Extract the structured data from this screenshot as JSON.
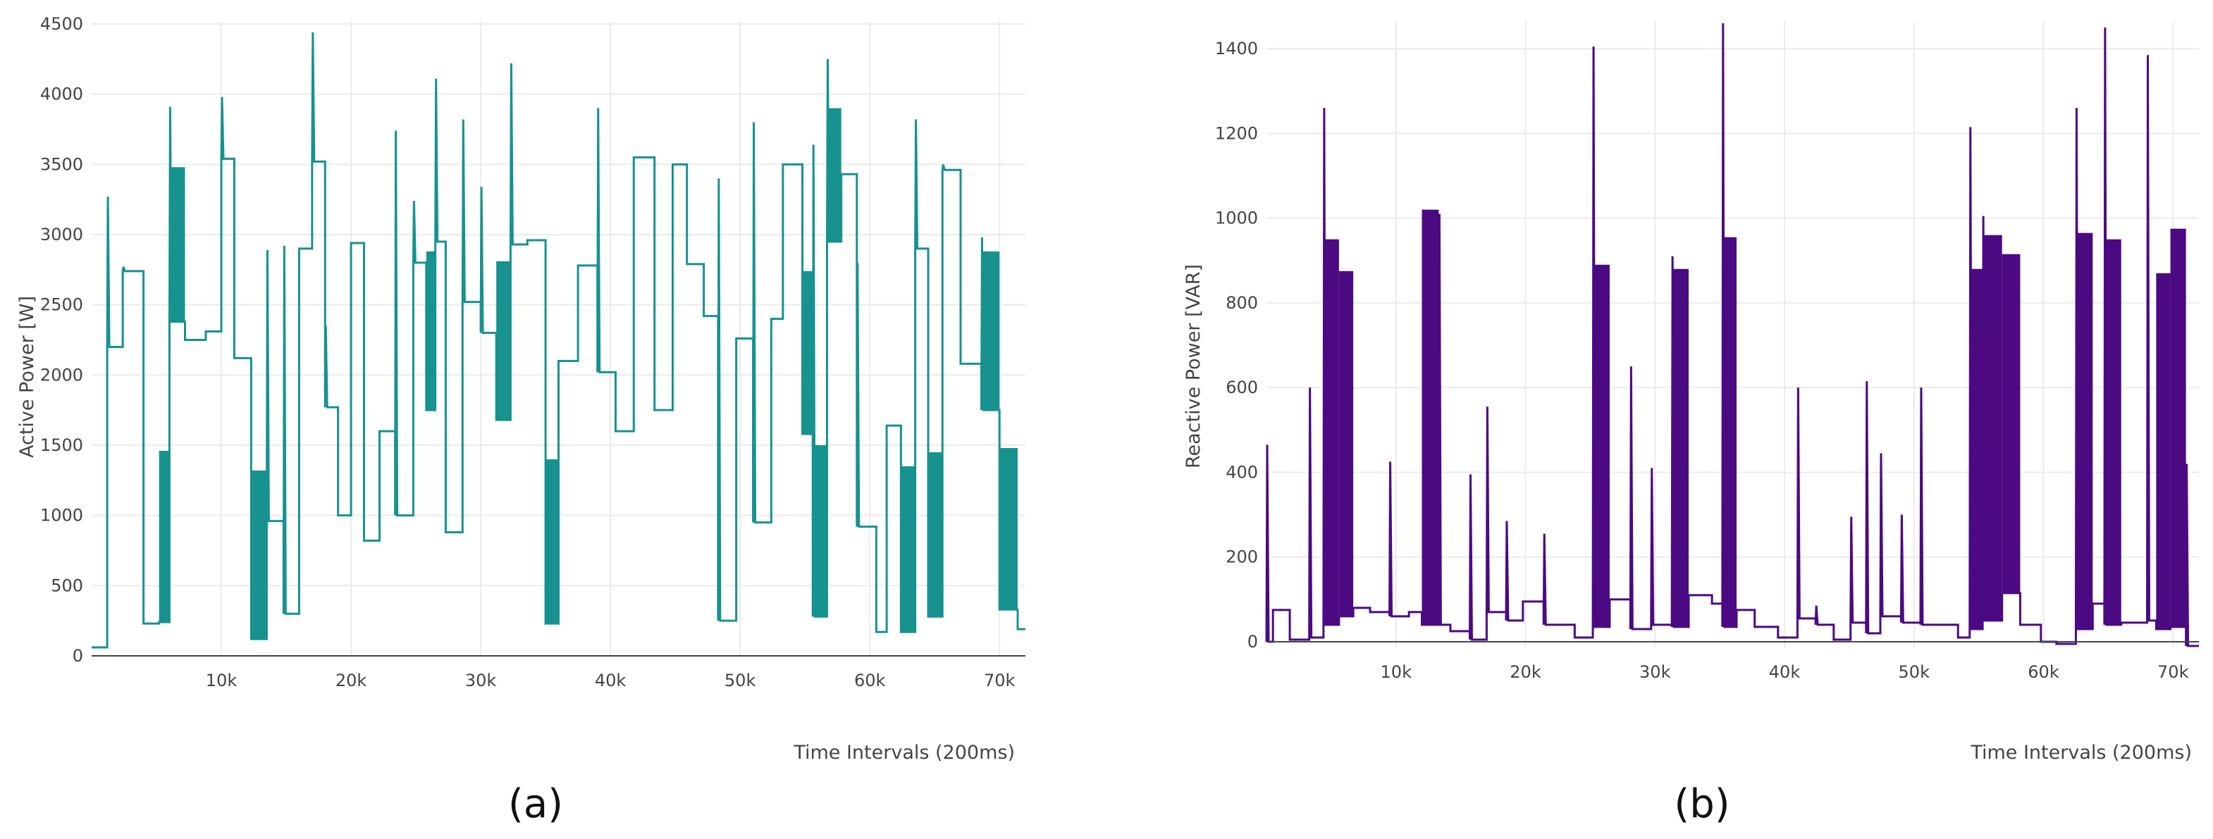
{
  "chart_data": [
    {
      "type": "line",
      "caption": "(a)",
      "ylabel": "Active Power [W]",
      "xlabel": "Time Intervals (200ms)",
      "color": "#17928f",
      "xlim": [
        0,
        72000
      ],
      "ylim": [
        -5,
        4520
      ],
      "grid": true,
      "x_ticks": [
        10000,
        20000,
        30000,
        40000,
        50000,
        60000,
        70000
      ],
      "x_tick_labels": [
        "10k",
        "20k",
        "30k",
        "40k",
        "50k",
        "60k",
        "70k"
      ],
      "y_ticks": [
        0,
        500,
        1000,
        1500,
        2000,
        2500,
        3000,
        3500,
        4000,
        4500
      ],
      "y_tick_labels": [
        "0",
        "500",
        "1000",
        "1500",
        "2000",
        "2500",
        "3000",
        "3500",
        "4000",
        "4500"
      ],
      "series": [
        {
          "name": "Active Power",
          "segments": [
            {
              "x0": 0,
              "x1": 1200,
              "y": 60
            },
            {
              "x0": 1200,
              "x1": 2400,
              "y": 2200,
              "spike": 3270
            },
            {
              "x0": 2400,
              "x1": 4000,
              "y": 2740,
              "spike": 2770
            },
            {
              "x0": 4000,
              "x1": 5200,
              "y": 230
            },
            {
              "x0": 5200,
              "x1": 6000,
              "y": 240,
              "band_low": 240,
              "band_high": 1460
            },
            {
              "x0": 6000,
              "x1": 7200,
              "y": 2380,
              "band_low": 2380,
              "band_high": 3480,
              "spike": 3910
            },
            {
              "x0": 7200,
              "x1": 8800,
              "y": 2250
            },
            {
              "x0": 8800,
              "x1": 10000,
              "y": 2310
            },
            {
              "x0": 10000,
              "x1": 11000,
              "y": 3540,
              "spike": 3980
            },
            {
              "x0": 11000,
              "x1": 12300,
              "y": 2120
            },
            {
              "x0": 12300,
              "x1": 13500,
              "y": 120,
              "band_low": 120,
              "band_high": 1320
            },
            {
              "x0": 13500,
              "x1": 14800,
              "y": 960,
              "spike": 2890
            },
            {
              "x0": 14800,
              "x1": 16000,
              "y": 300,
              "spike": 2920
            },
            {
              "x0": 16000,
              "x1": 17000,
              "y": 2900
            },
            {
              "x0": 17000,
              "x1": 18000,
              "y": 3520,
              "spike": 4440
            },
            {
              "x0": 18000,
              "x1": 19000,
              "y": 1770,
              "spike": 2350
            },
            {
              "x0": 19000,
              "x1": 20000,
              "y": 1000
            },
            {
              "x0": 20000,
              "x1": 21000,
              "y": 2940
            },
            {
              "x0": 21000,
              "x1": 22200,
              "y": 820
            },
            {
              "x0": 22200,
              "x1": 23400,
              "y": 1600
            },
            {
              "x0": 23400,
              "x1": 24800,
              "y": 1000,
              "spike": 3740
            },
            {
              "x0": 24800,
              "x1": 25800,
              "y": 2800,
              "spike": 3240
            },
            {
              "x0": 25800,
              "x1": 26500,
              "y": 1750,
              "band_low": 1750,
              "band_high": 2880
            },
            {
              "x0": 26500,
              "x1": 27300,
              "y": 2950,
              "spike": 4110
            },
            {
              "x0": 27300,
              "x1": 28600,
              "y": 880
            },
            {
              "x0": 28600,
              "x1": 30000,
              "y": 2520,
              "spike": 3820
            },
            {
              "x0": 30000,
              "x1": 31200,
              "y": 2300,
              "spike": 3340
            },
            {
              "x0": 31200,
              "x1": 32300,
              "y": 1680,
              "band_low": 1680,
              "band_high": 2810
            },
            {
              "x0": 32300,
              "x1": 33600,
              "y": 2930,
              "spike": 4220
            },
            {
              "x0": 33600,
              "x1": 35000,
              "y": 2960
            },
            {
              "x0": 35000,
              "x1": 36000,
              "y": 230,
              "band_low": 230,
              "band_high": 1400
            },
            {
              "x0": 36000,
              "x1": 37500,
              "y": 2100
            },
            {
              "x0": 37500,
              "x1": 39000,
              "y": 2780
            },
            {
              "x0": 39000,
              "x1": 40400,
              "y": 2020,
              "spike": 3900
            },
            {
              "x0": 40400,
              "x1": 41800,
              "y": 1600
            },
            {
              "x0": 41800,
              "x1": 43400,
              "y": 3550
            },
            {
              "x0": 43400,
              "x1": 44800,
              "y": 1750
            },
            {
              "x0": 44800,
              "x1": 45900,
              "y": 3500
            },
            {
              "x0": 45900,
              "x1": 47200,
              "y": 2790
            },
            {
              "x0": 47200,
              "x1": 48300,
              "y": 2420
            },
            {
              "x0": 48300,
              "x1": 49700,
              "y": 250,
              "spike": 3400
            },
            {
              "x0": 49700,
              "x1": 51000,
              "y": 2260
            },
            {
              "x0": 51000,
              "x1": 52400,
              "y": 950,
              "spike": 3800
            },
            {
              "x0": 52400,
              "x1": 53300,
              "y": 2400
            },
            {
              "x0": 53300,
              "x1": 54800,
              "y": 3500
            },
            {
              "x0": 54800,
              "x1": 55600,
              "y": 1580,
              "band_low": 1580,
              "band_high": 2740
            },
            {
              "x0": 55600,
              "x1": 56700,
              "y": 280,
              "band_low": 280,
              "band_high": 1500,
              "spike": 3640
            },
            {
              "x0": 56700,
              "x1": 57800,
              "y": 2950,
              "band_low": 2950,
              "band_high": 3900,
              "spike": 4250
            },
            {
              "x0": 57800,
              "x1": 59000,
              "y": 3430
            },
            {
              "x0": 59000,
              "x1": 60500,
              "y": 920,
              "spike": 2800
            },
            {
              "x0": 60500,
              "x1": 61300,
              "y": 170
            },
            {
              "x0": 61300,
              "x1": 62400,
              "y": 1640
            },
            {
              "x0": 62400,
              "x1": 63500,
              "y": 170,
              "band_low": 170,
              "band_high": 1350
            },
            {
              "x0": 63500,
              "x1": 64500,
              "y": 2900,
              "spike": 3820
            },
            {
              "x0": 64500,
              "x1": 65600,
              "y": 280,
              "band_low": 280,
              "band_high": 1450
            },
            {
              "x0": 65600,
              "x1": 67000,
              "y": 3460,
              "spike": 3500
            },
            {
              "x0": 67000,
              "x1": 68600,
              "y": 2080
            },
            {
              "x0": 68600,
              "x1": 70000,
              "y": 1750,
              "band_low": 1750,
              "band_high": 2880,
              "spike": 2980
            },
            {
              "x0": 70000,
              "x1": 71400,
              "y": 330,
              "band_low": 330,
              "band_high": 1480
            },
            {
              "x0": 71400,
              "x1": 72000,
              "y": 190
            }
          ]
        }
      ]
    },
    {
      "type": "line",
      "caption": "(b)",
      "ylabel": "Reactive Power [VAR]",
      "xlabel": "Time Intervals (200ms)",
      "color": "#4b0a82",
      "xlim": [
        0,
        72000
      ],
      "ylim": [
        -15,
        1465
      ],
      "grid": true,
      "x_ticks": [
        10000,
        20000,
        30000,
        40000,
        50000,
        60000,
        70000
      ],
      "x_tick_labels": [
        "10k",
        "20k",
        "30k",
        "40k",
        "50k",
        "60k",
        "70k"
      ],
      "y_ticks": [
        0,
        200,
        400,
        600,
        800,
        1000,
        1200,
        1400
      ],
      "y_tick_labels": [
        "0",
        "200",
        "400",
        "600",
        "800",
        "1000",
        "1200",
        "1400"
      ],
      "series": [
        {
          "name": "Reactive Power",
          "segments": [
            {
              "x0": 0,
              "x1": 500,
              "y": 0,
              "spike": 465
            },
            {
              "x0": 500,
              "x1": 1800,
              "y": 75
            },
            {
              "x0": 1800,
              "x1": 3300,
              "y": 5
            },
            {
              "x0": 3300,
              "x1": 4400,
              "y": 10,
              "spike": 600
            },
            {
              "x0": 4400,
              "x1": 5600,
              "y": 40,
              "band_low": 40,
              "band_high": 950,
              "spike": 1260
            },
            {
              "x0": 5600,
              "x1": 6700,
              "y": 60,
              "band_low": 60,
              "band_high": 875
            },
            {
              "x0": 6700,
              "x1": 8000,
              "y": 80
            },
            {
              "x0": 8000,
              "x1": 9500,
              "y": 70
            },
            {
              "x0": 9500,
              "x1": 11000,
              "y": 60,
              "spike": 425
            },
            {
              "x0": 11000,
              "x1": 12000,
              "y": 70
            },
            {
              "x0": 12000,
              "x1": 13300,
              "y": 40,
              "band_low": 40,
              "band_high": 1020
            },
            {
              "x0": 13300,
              "x1": 14200,
              "y": 40,
              "spike": 1010
            },
            {
              "x0": 14200,
              "x1": 15700,
              "y": 25
            },
            {
              "x0": 15700,
              "x1": 17000,
              "y": 5,
              "spike": 395
            },
            {
              "x0": 17000,
              "x1": 18500,
              "y": 70,
              "spike": 555
            },
            {
              "x0": 18500,
              "x1": 19800,
              "y": 50,
              "spike": 285
            },
            {
              "x0": 19800,
              "x1": 21400,
              "y": 95
            },
            {
              "x0": 21400,
              "x1": 23800,
              "y": 40,
              "spike": 255
            },
            {
              "x0": 23800,
              "x1": 25200,
              "y": 10
            },
            {
              "x0": 25200,
              "x1": 26500,
              "y": 35,
              "band_low": 35,
              "band_high": 890,
              "spike": 1405
            },
            {
              "x0": 26500,
              "x1": 28100,
              "y": 100
            },
            {
              "x0": 28100,
              "x1": 29700,
              "y": 30,
              "spike": 650
            },
            {
              "x0": 29700,
              "x1": 31300,
              "y": 40,
              "spike": 410
            },
            {
              "x0": 31300,
              "x1": 32600,
              "y": 35,
              "band_low": 35,
              "band_high": 880,
              "spike": 910
            },
            {
              "x0": 32600,
              "x1": 34400,
              "y": 110
            },
            {
              "x0": 34400,
              "x1": 35200,
              "y": 90
            },
            {
              "x0": 35200,
              "x1": 36300,
              "y": 35,
              "band_low": 35,
              "band_high": 955,
              "spike": 1460
            },
            {
              "x0": 36300,
              "x1": 37700,
              "y": 75
            },
            {
              "x0": 37700,
              "x1": 39500,
              "y": 35
            },
            {
              "x0": 39500,
              "x1": 41000,
              "y": 10
            },
            {
              "x0": 41000,
              "x1": 42400,
              "y": 55,
              "spike": 600
            },
            {
              "x0": 42400,
              "x1": 43800,
              "y": 40,
              "spike": 85
            },
            {
              "x0": 43800,
              "x1": 45100,
              "y": 5
            },
            {
              "x0": 45100,
              "x1": 46300,
              "y": 45,
              "spike": 295
            },
            {
              "x0": 46300,
              "x1": 47400,
              "y": 20,
              "spike": 615
            },
            {
              "x0": 47400,
              "x1": 49000,
              "y": 60,
              "spike": 445
            },
            {
              "x0": 49000,
              "x1": 50500,
              "y": 45,
              "spike": 300
            },
            {
              "x0": 50500,
              "x1": 51900,
              "y": 40,
              "spike": 600
            },
            {
              "x0": 51900,
              "x1": 53400,
              "y": 40
            },
            {
              "x0": 53400,
              "x1": 54300,
              "y": 10
            },
            {
              "x0": 54300,
              "x1": 55300,
              "y": 30,
              "band_low": 30,
              "band_high": 880,
              "spike": 1215
            },
            {
              "x0": 55300,
              "x1": 56800,
              "y": 50,
              "band_low": 50,
              "band_high": 960,
              "spike": 1005
            },
            {
              "x0": 56800,
              "x1": 58200,
              "y": 115,
              "band_low": 115,
              "band_high": 915
            },
            {
              "x0": 58200,
              "x1": 59800,
              "y": 40
            },
            {
              "x0": 59800,
              "x1": 61000,
              "y": 0
            },
            {
              "x0": 61000,
              "x1": 62500,
              "y": -5
            },
            {
              "x0": 62500,
              "x1": 63800,
              "y": 30,
              "band_low": 30,
              "band_high": 965,
              "spike": 1260
            },
            {
              "x0": 63800,
              "x1": 64700,
              "y": 90
            },
            {
              "x0": 64700,
              "x1": 66000,
              "y": 40,
              "band_low": 40,
              "band_high": 950,
              "spike": 1450
            },
            {
              "x0": 66000,
              "x1": 68000,
              "y": 45
            },
            {
              "x0": 68000,
              "x1": 68700,
              "y": 50,
              "spike": 1385
            },
            {
              "x0": 68700,
              "x1": 69800,
              "y": 30,
              "band_low": 30,
              "band_high": 870
            },
            {
              "x0": 69800,
              "x1": 71000,
              "y": 35,
              "band_low": 35,
              "band_high": 975
            },
            {
              "x0": 71000,
              "x1": 72000,
              "y": -10,
              "spike": 420
            }
          ]
        }
      ]
    }
  ]
}
